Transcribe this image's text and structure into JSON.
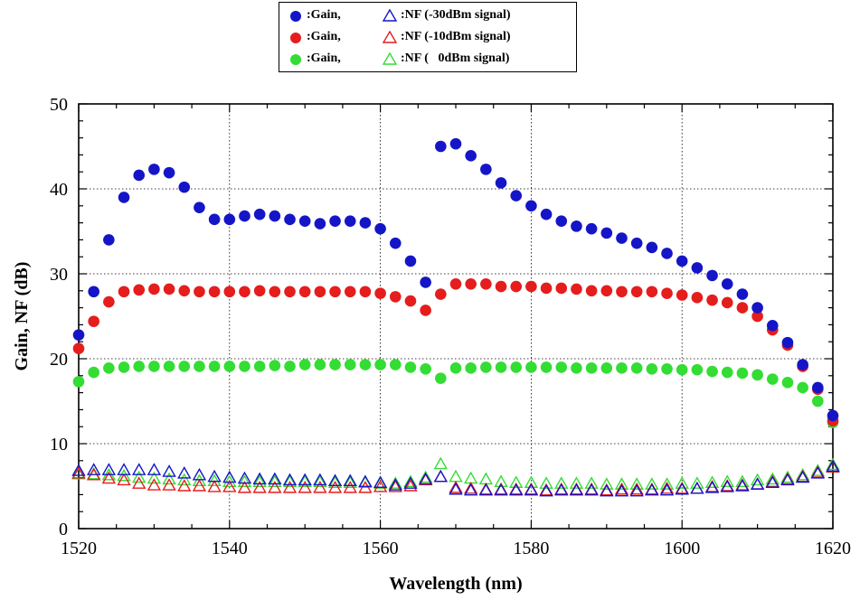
{
  "legend": {
    "rows": [
      {
        "gain_label": ":Gain,",
        "nf_label": ":NF (-30dBm signal)",
        "color": "#1515c8"
      },
      {
        "gain_label": ":Gain,",
        "nf_label": ":NF (-10dBm signal)",
        "color": "#e51d1d"
      },
      {
        "gain_label": ":Gain,",
        "nf_label": ":NF (   0dBm signal)",
        "color": "#33dd33"
      }
    ]
  },
  "chart_data": {
    "type": "scatter",
    "xlabel": "Wavelength (nm)",
    "ylabel": "Gain, NF (dB)",
    "xlim": [
      1520,
      1620
    ],
    "ylim": [
      0,
      50
    ],
    "xticks": [
      1520,
      1540,
      1560,
      1580,
      1600,
      1620
    ],
    "yticks": [
      0,
      10,
      20,
      30,
      40,
      50
    ],
    "grid": true,
    "x": [
      1520,
      1522,
      1524,
      1526,
      1528,
      1530,
      1532,
      1534,
      1536,
      1538,
      1540,
      1542,
      1544,
      1546,
      1548,
      1550,
      1552,
      1554,
      1556,
      1558,
      1560,
      1562,
      1564,
      1566,
      1568,
      1570,
      1572,
      1574,
      1576,
      1578,
      1580,
      1582,
      1584,
      1586,
      1588,
      1590,
      1592,
      1594,
      1596,
      1598,
      1600,
      1602,
      1604,
      1606,
      1608,
      1610,
      1612,
      1614,
      1616,
      1618,
      1620
    ],
    "series": [
      {
        "label": ":Gain,",
        "signal": "-30dBm",
        "marker": "circle",
        "color": "#1515c8",
        "values": [
          22.8,
          27.9,
          34.0,
          39.0,
          41.6,
          42.3,
          41.9,
          40.2,
          37.8,
          36.4,
          36.4,
          36.8,
          37.0,
          36.8,
          36.4,
          36.2,
          35.9,
          36.2,
          36.2,
          36.0,
          35.3,
          33.6,
          31.5,
          29.0,
          45.0,
          45.3,
          43.9,
          42.3,
          40.7,
          39.2,
          38.0,
          37.0,
          36.2,
          35.6,
          35.3,
          34.8,
          34.2,
          33.6,
          33.1,
          32.4,
          31.5,
          30.7,
          29.8,
          28.8,
          27.6,
          26.0,
          23.9,
          21.9,
          19.3,
          16.6,
          13.3
        ]
      },
      {
        "label": ":Gain,",
        "signal": "-10dBm",
        "marker": "circle",
        "color": "#e51d1d",
        "values": [
          21.2,
          24.4,
          26.7,
          27.9,
          28.1,
          28.2,
          28.2,
          28.0,
          27.9,
          27.9,
          27.9,
          27.9,
          28.0,
          27.9,
          27.9,
          27.9,
          27.9,
          27.9,
          27.9,
          27.9,
          27.7,
          27.3,
          26.8,
          25.7,
          27.6,
          28.8,
          28.8,
          28.8,
          28.5,
          28.5,
          28.5,
          28.3,
          28.3,
          28.2,
          28.0,
          28.0,
          27.9,
          27.9,
          27.9,
          27.7,
          27.5,
          27.2,
          26.9,
          26.6,
          26.0,
          25.0,
          23.4,
          21.6,
          19.1,
          16.4,
          12.7
        ]
      },
      {
        "label": ":Gain,",
        "signal": "0dBm",
        "marker": "circle",
        "color": "#33dd33",
        "values": [
          17.3,
          18.4,
          18.9,
          19.0,
          19.1,
          19.1,
          19.1,
          19.1,
          19.1,
          19.1,
          19.1,
          19.1,
          19.1,
          19.2,
          19.1,
          19.3,
          19.3,
          19.3,
          19.3,
          19.3,
          19.3,
          19.3,
          19.0,
          18.8,
          17.7,
          18.9,
          18.9,
          19.0,
          19.0,
          19.0,
          19.0,
          19.0,
          19.0,
          18.9,
          18.9,
          18.9,
          18.9,
          18.9,
          18.8,
          18.8,
          18.7,
          18.7,
          18.5,
          18.4,
          18.3,
          18.1,
          17.6,
          17.2,
          16.6,
          15.0,
          12.5
        ]
      },
      {
        "label": ":NF (-30dBm signal)",
        "marker": "triangle",
        "color": "#1515c8",
        "values": [
          6.8,
          6.9,
          6.9,
          6.9,
          6.9,
          6.9,
          6.7,
          6.5,
          6.3,
          6.1,
          6.0,
          5.9,
          5.8,
          5.8,
          5.7,
          5.7,
          5.7,
          5.6,
          5.6,
          5.5,
          5.4,
          5.1,
          5.3,
          5.8,
          6.1,
          4.6,
          4.5,
          4.5,
          4.5,
          4.5,
          4.5,
          4.4,
          4.5,
          4.5,
          4.5,
          4.4,
          4.4,
          4.4,
          4.5,
          4.5,
          4.6,
          4.7,
          4.8,
          4.9,
          5.0,
          5.2,
          5.4,
          5.7,
          6.0,
          6.5,
          7.3
        ]
      },
      {
        "label": ":NF (-10dBm signal)",
        "marker": "triangle",
        "color": "#e51d1d",
        "values": [
          6.5,
          6.3,
          5.9,
          5.7,
          5.3,
          5.1,
          5.1,
          5.0,
          5.0,
          4.9,
          4.9,
          4.8,
          4.8,
          4.8,
          4.8,
          4.8,
          4.8,
          4.8,
          4.8,
          4.8,
          4.9,
          4.9,
          5.0,
          5.7,
          6.1,
          4.8,
          4.7,
          4.6,
          4.6,
          4.6,
          4.6,
          4.5,
          4.6,
          4.6,
          4.6,
          4.5,
          4.6,
          4.6,
          4.6,
          4.7,
          4.7,
          4.7,
          4.9,
          5.0,
          5.1,
          5.2,
          5.5,
          5.8,
          6.1,
          6.6,
          7.2
        ]
      },
      {
        "label": ":NF (   0dBm signal)",
        "marker": "triangle",
        "color": "#33dd33",
        "values": [
          6.4,
          6.4,
          6.3,
          6.2,
          6.0,
          5.9,
          5.8,
          5.7,
          5.6,
          5.6,
          5.5,
          5.5,
          5.5,
          5.5,
          5.5,
          5.5,
          5.5,
          5.4,
          5.4,
          5.4,
          5.3,
          5.3,
          5.5,
          6.0,
          7.6,
          6.1,
          5.9,
          5.8,
          5.5,
          5.4,
          5.4,
          5.3,
          5.3,
          5.3,
          5.3,
          5.2,
          5.2,
          5.2,
          5.2,
          5.2,
          5.3,
          5.3,
          5.4,
          5.5,
          5.5,
          5.7,
          5.8,
          6.0,
          6.3,
          6.8,
          7.5
        ]
      }
    ]
  }
}
